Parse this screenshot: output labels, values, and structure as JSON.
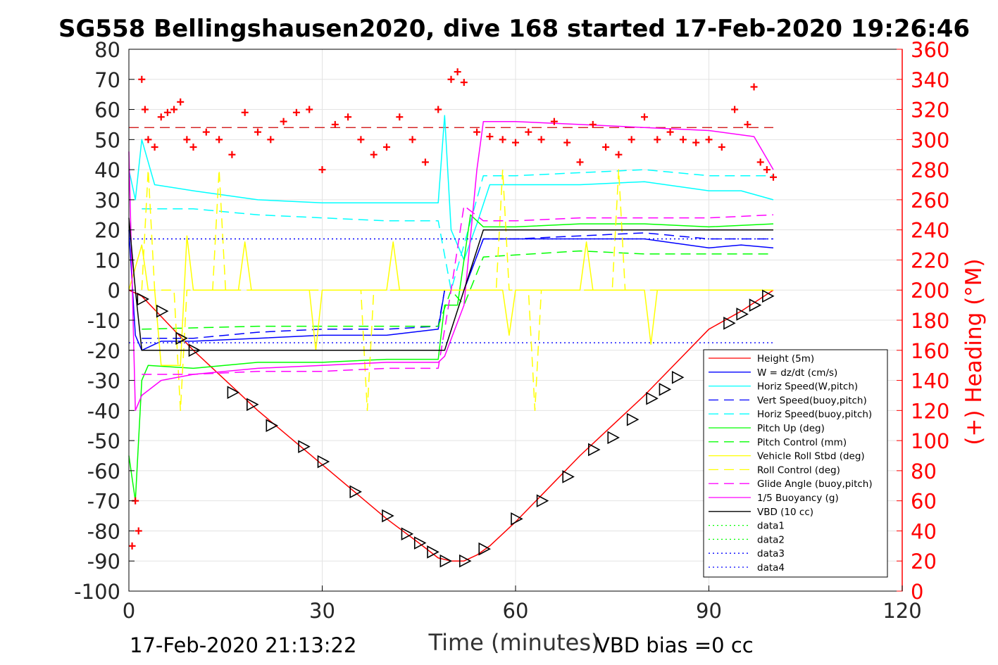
{
  "chart_data": {
    "type": "line",
    "title": "SG558 Bellingshausen2020, dive 168 started 17-Feb-2020 19:26:46",
    "xlabel": "Time (minutes)",
    "ylabel": "",
    "y2label": "(+) Heading (°M)",
    "xlim": [
      0,
      120
    ],
    "ylim": [
      -100,
      80
    ],
    "y2lim": [
      0,
      360
    ],
    "xticks": [
      "0",
      "30",
      "60",
      "90",
      "120"
    ],
    "yticks": [
      "-100",
      "-90",
      "-80",
      "-70",
      "-60",
      "-50",
      "-40",
      "-30",
      "-20",
      "-10",
      "0",
      "10",
      "20",
      "30",
      "40",
      "50",
      "60",
      "70",
      "80"
    ],
    "y2ticks": [
      "0",
      "20",
      "40",
      "60",
      "80",
      "100",
      "120",
      "140",
      "160",
      "180",
      "200",
      "220",
      "240",
      "260",
      "280",
      "300",
      "320",
      "340",
      "360"
    ],
    "grid": true,
    "legend_position": "lower-right",
    "footer_left": "17-Feb-2020 21:13:22",
    "footer_right": "VBD bias =0 cc",
    "colors": {
      "axis2": "#ff0000",
      "height": "#ff0000",
      "w": "#0000ff",
      "horiz": "#00ffff",
      "pitch": "#00ff00",
      "roll": "#ffff00",
      "glide": "#ff00ff",
      "vbd": "#000000",
      "heading": "#ff0000"
    },
    "series": [
      {
        "name": "Height (5m)",
        "style": "solid",
        "color": "#ff0000",
        "x": [
          0,
          2,
          10,
          20,
          30,
          40,
          45,
          48,
          50,
          52,
          54,
          56,
          60,
          70,
          80,
          90,
          95,
          100
        ],
        "y": [
          0,
          -2,
          -20,
          -40,
          -58,
          -76,
          -84,
          -89,
          -90,
          -90,
          -88,
          -85,
          -77,
          -55,
          -35,
          -13,
          -7,
          0
        ]
      },
      {
        "name": "W = dz/dt (cm/s)",
        "style": "solid",
        "color": "#0000ff",
        "x": [
          0,
          1,
          2,
          5,
          10,
          20,
          30,
          40,
          48,
          49,
          52,
          55,
          60,
          70,
          80,
          90,
          95,
          100
        ],
        "y": [
          20,
          -15,
          -20,
          -17,
          -17,
          -16,
          -15,
          -15,
          -13,
          0,
          0,
          17,
          17,
          17,
          17,
          14,
          15,
          14
        ]
      },
      {
        "name": "Horiz Speed(W,pitch)",
        "style": "solid",
        "color": "#00ffff",
        "x": [
          0,
          1,
          2,
          4,
          10,
          20,
          30,
          40,
          48,
          49,
          50,
          52,
          54,
          56,
          60,
          70,
          80,
          90,
          95,
          100
        ],
        "y": [
          40,
          30,
          50,
          35,
          33,
          30,
          29,
          29,
          29,
          58,
          20,
          10,
          22,
          35,
          35,
          35,
          36,
          33,
          33,
          30
        ]
      },
      {
        "name": "Vert Speed(buoy,pitch)",
        "style": "dashed",
        "color": "#0000ff",
        "x": [
          2,
          10,
          20,
          30,
          40,
          48,
          49,
          52,
          55,
          60,
          70,
          80,
          90,
          100
        ],
        "y": [
          -16,
          -16,
          -14,
          -13,
          -13,
          -12,
          0,
          0,
          17,
          17,
          18,
          19,
          17,
          17
        ]
      },
      {
        "name": "Horiz Speed(buoy,pitch)",
        "style": "dashed",
        "color": "#00ffff",
        "x": [
          2,
          10,
          20,
          30,
          40,
          48,
          50,
          52,
          55,
          60,
          70,
          80,
          90,
          100
        ],
        "y": [
          27,
          27,
          25,
          24,
          23,
          23,
          0,
          15,
          38,
          38,
          39,
          40,
          38,
          38
        ]
      },
      {
        "name": "Pitch Up (deg)",
        "style": "solid",
        "color": "#00ff00",
        "x": [
          0,
          1,
          2,
          3,
          10,
          20,
          30,
          40,
          48,
          49,
          51,
          53,
          55,
          60,
          70,
          80,
          90,
          100
        ],
        "y": [
          -55,
          -70,
          -30,
          -25,
          -26,
          -24,
          -24,
          -23,
          -23,
          -5,
          -5,
          25,
          21,
          21,
          22,
          22,
          21,
          22
        ]
      },
      {
        "name": "Pitch Control (mm)",
        "style": "dashed",
        "color": "#00ff00",
        "x": [
          2,
          20,
          48,
          50,
          52,
          55,
          70,
          80,
          100
        ],
        "y": [
          -13,
          -12,
          -12,
          0,
          -5,
          11,
          13,
          12,
          12
        ]
      },
      {
        "name": "Vehicle Roll Stbd (deg)",
        "style": "solid",
        "color": "#ffff00",
        "x": [
          0,
          2,
          3,
          4,
          5,
          8,
          9,
          10,
          17,
          18,
          19,
          28,
          29,
          30,
          40,
          41,
          42,
          50,
          55,
          58,
          59,
          60,
          70,
          71,
          72,
          80,
          81,
          82,
          90,
          100
        ],
        "y": [
          0,
          15,
          0,
          0,
          -25,
          -25,
          18,
          0,
          0,
          16,
          0,
          0,
          -20,
          0,
          0,
          16,
          0,
          0,
          0,
          0,
          -15,
          0,
          0,
          16,
          0,
          0,
          -18,
          0,
          0,
          0
        ]
      },
      {
        "name": "Roll Control (deg)",
        "style": "dashed",
        "color": "#ffff00",
        "x": [
          2,
          3,
          4,
          7,
          8,
          9,
          13,
          14,
          15,
          36,
          37,
          38,
          57,
          58,
          59,
          62,
          63,
          64,
          75,
          76,
          77,
          100
        ],
        "y": [
          0,
          40,
          0,
          0,
          -40,
          0,
          0,
          40,
          0,
          0,
          -40,
          0,
          0,
          40,
          0,
          0,
          -40,
          0,
          0,
          40,
          0,
          0
        ]
      },
      {
        "name": "Glide Angle (buoy,pitch)",
        "style": "dashed",
        "color": "#ff00ff",
        "x": [
          2,
          10,
          20,
          30,
          40,
          48,
          50,
          52,
          55,
          60,
          70,
          80,
          90,
          100
        ],
        "y": [
          -28,
          -28,
          -27,
          -27,
          -26,
          -26,
          0,
          28,
          23,
          23,
          24,
          24,
          24,
          25
        ]
      },
      {
        "name": "1/5 Buoyancy (g)",
        "style": "solid",
        "color": "#ff00ff",
        "x": [
          0,
          1,
          2,
          5,
          10,
          20,
          30,
          40,
          48,
          49,
          52,
          54,
          55,
          60,
          70,
          80,
          90,
          97,
          100
        ],
        "y": [
          46,
          -40,
          -35,
          -30,
          -28,
          -26,
          -25,
          -24,
          -24,
          -22,
          -5,
          40,
          56,
          56,
          55,
          54,
          53,
          51,
          40
        ]
      },
      {
        "name": "VBD (10 cc)",
        "style": "solid",
        "color": "#000000",
        "x": [
          0,
          1,
          2,
          4,
          49,
          55,
          100
        ],
        "y": [
          24,
          0,
          -20,
          -20,
          -20,
          20,
          20
        ]
      },
      {
        "name": "data1",
        "style": "dotted",
        "color": "#00ff00",
        "x": [],
        "y": []
      },
      {
        "name": "data2",
        "style": "dotted",
        "color": "#00ff00",
        "x": [],
        "y": []
      },
      {
        "name": "data3",
        "style": "dotted",
        "color": "#0000ff",
        "x": [],
        "y": []
      },
      {
        "name": "data4",
        "style": "dotted",
        "color": "#0000ff",
        "x": [
          0,
          100
        ],
        "y": [
          17,
          17
        ]
      }
    ],
    "reference_lines": [
      {
        "axis": "y",
        "value": -17.5,
        "style": "dotted",
        "color": "#0000ff"
      },
      {
        "axis": "y2",
        "value": 308,
        "style": "dashed",
        "color": "#cc0000"
      }
    ],
    "vbd_markers": {
      "marker": "triangle",
      "x": [
        2,
        5,
        8,
        10,
        16,
        19,
        22,
        27,
        30,
        35,
        40,
        43,
        45,
        47,
        49,
        52,
        55,
        60,
        64,
        68,
        72,
        75,
        78,
        81,
        83,
        85,
        93,
        95,
        97,
        99
      ],
      "y": [
        -3,
        -7,
        -16,
        -20,
        -34,
        -38,
        -45,
        -52,
        -57,
        -67,
        -75,
        -81,
        -84,
        -87,
        -90,
        -90,
        -86,
        -76,
        -70,
        -62,
        -53,
        -49,
        -43,
        -36,
        -33,
        -29,
        -11,
        -8,
        -5,
        -2
      ]
    },
    "heading_series": {
      "name": "(+) Heading",
      "axis": "y2",
      "marker": "+",
      "color": "#ff0000",
      "x": [
        0.5,
        1,
        1.5,
        2,
        2.5,
        3,
        4,
        5,
        6,
        7,
        8,
        9,
        10,
        12,
        14,
        16,
        18,
        20,
        22,
        24,
        26,
        28,
        30,
        32,
        34,
        36,
        38,
        40,
        42,
        44,
        46,
        48,
        50,
        51,
        52,
        54,
        56,
        58,
        60,
        62,
        64,
        66,
        68,
        70,
        72,
        74,
        76,
        78,
        80,
        82,
        84,
        86,
        88,
        90,
        92,
        94,
        96,
        97,
        98,
        99,
        100
      ],
      "y": [
        30,
        60,
        40,
        340,
        320,
        300,
        295,
        315,
        318,
        320,
        325,
        300,
        295,
        305,
        300,
        290,
        318,
        305,
        300,
        312,
        318,
        320,
        280,
        310,
        315,
        300,
        290,
        295,
        315,
        300,
        285,
        320,
        340,
        345,
        338,
        305,
        302,
        300,
        298,
        305,
        300,
        312,
        298,
        285,
        310,
        295,
        290,
        300,
        315,
        300,
        305,
        300,
        298,
        300,
        295,
        320,
        310,
        335,
        285,
        280,
        275
      ]
    }
  }
}
